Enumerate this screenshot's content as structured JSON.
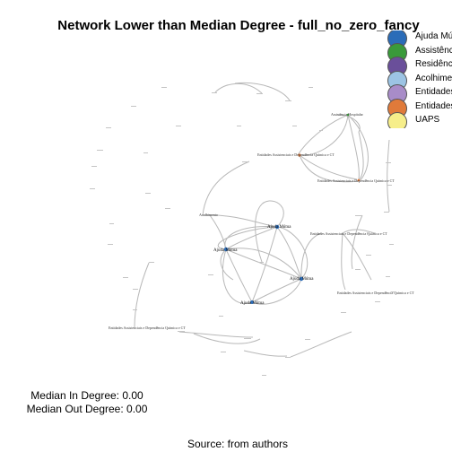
{
  "title": "Network Lower than Median Degree - full_no_zero_fancy",
  "legend": {
    "items": [
      {
        "label": "Ajuda Mú",
        "color": "#2b6cb8"
      },
      {
        "label": "Assistênc",
        "color": "#3a9a3a"
      },
      {
        "label": "Residênc",
        "color": "#6a4f9a"
      },
      {
        "label": "Acolhime",
        "color": "#9cc4e4"
      },
      {
        "label": "Entidades",
        "color": "#a88cc8"
      },
      {
        "label": "Entidades",
        "color": "#e07a3a"
      },
      {
        "label": "UAPS",
        "color": "#f6ee8a"
      }
    ]
  },
  "nodes": {
    "hospital": "Assistência Hospitalar",
    "entidade_upper": "Entidades Assistenciais e Dependência Química e CT",
    "entidade_lower": "Entidades Assistenciais e Dependência Química e CT",
    "entidade_right": "Entidades Assistenciais e Dependência Química e CT",
    "entidade_right_low": "Entidades Assistenciais e Dependência Química e CT",
    "entidade_bottom_left": "Entidades Assistenciais e Dependência Química e CT",
    "ajuda_top": "Ajuda Mútua",
    "ajuda_left": "Ajuda Mútua",
    "ajuda_right": "Ajuda Mútua",
    "ajuda_bottom": "Ajuda Mútua",
    "acolhimento": "Acolhimento"
  },
  "colors": {
    "node_blue": "#2b6cb8",
    "node_orange": "#e07a3a",
    "edge": "#b8b8b8"
  },
  "stats": {
    "median_in": "Median In Degree: 0.00",
    "median_out": "Median Out Degree: 0.00"
  },
  "caption": "Source: from authors"
}
